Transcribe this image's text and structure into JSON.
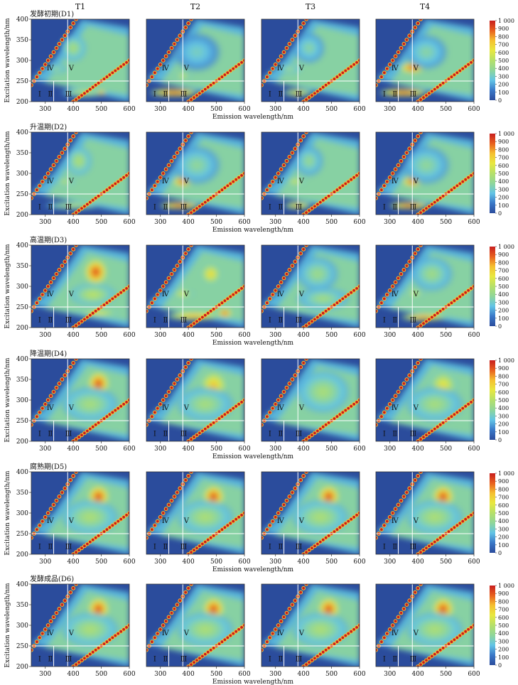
{
  "chart_data": {
    "type": "heatmap",
    "columns": [
      "T1",
      "T2",
      "T3",
      "T4"
    ],
    "rows": [
      {
        "label": "发酵初期(D1)",
        "row_id": "D1"
      },
      {
        "label": "升温期(D2)",
        "row_id": "D2"
      },
      {
        "label": "高温期(D3)",
        "row_id": "D3"
      },
      {
        "label": "降温期(D4)",
        "row_id": "D4"
      },
      {
        "label": "腐熟期(D5)",
        "row_id": "D5"
      },
      {
        "label": "发酵成品(D6)",
        "row_id": "D6"
      }
    ],
    "xlabel": "Emission wavelength/nm",
    "ylabel": "Excitation wavelength/nm",
    "xlim": [
      250,
      600
    ],
    "ylim": [
      200,
      400
    ],
    "xticks": [
      300,
      400,
      500,
      600
    ],
    "xtick_labels": [
      "300",
      "400",
      "500",
      "600"
    ],
    "yticks": [
      200,
      250,
      300,
      350,
      400
    ],
    "ytick_labels": [
      "200",
      "250",
      "300",
      "350",
      "400"
    ],
    "colorbar": {
      "range": [
        0,
        1000
      ],
      "ticks": [
        0,
        100,
        200,
        300,
        400,
        500,
        600,
        700,
        800,
        900,
        1000
      ],
      "tick_labels": [
        "0",
        "100",
        "200",
        "300",
        "400",
        "500",
        "600",
        "700",
        "800",
        "900",
        "1 000"
      ],
      "colors": [
        "#2b4c9c",
        "#3a78c8",
        "#62c4e6",
        "#8fd69a",
        "#b5e06a",
        "#e8e840",
        "#f5c030",
        "#e8601e",
        "#c81e1e"
      ]
    },
    "region_boundaries": {
      "emission_nm": [
        330,
        380
      ],
      "excitation_nm": [
        250
      ]
    },
    "regions": [
      {
        "label": "Ⅰ",
        "em": 280,
        "ex": 220
      },
      {
        "label": "Ⅱ",
        "em": 318,
        "ex": 220
      },
      {
        "label": "Ⅲ",
        "em": 383,
        "ex": 220
      },
      {
        "label": "Ⅳ",
        "em": 318,
        "ex": 283
      },
      {
        "label": "Ⅴ",
        "em": 393,
        "ex": 283
      }
    ],
    "panels": [
      {
        "row": 0,
        "col": 0,
        "blobs": [
          {
            "em": 400,
            "ex": 330,
            "sx": 50,
            "sy": 35,
            "v": 480
          },
          {
            "em": 340,
            "ex": 280,
            "sx": 40,
            "sy": 12,
            "v": 450
          },
          {
            "em": 440,
            "ex": 222,
            "sx": 90,
            "sy": 12,
            "v": 560
          },
          {
            "em": 500,
            "ex": 222,
            "sx": 18,
            "sy": 7,
            "v": 950
          }
        ]
      },
      {
        "row": 0,
        "col": 1,
        "blobs": [
          {
            "em": 380,
            "ex": 318,
            "sx": 40,
            "sy": 10,
            "v": 620
          },
          {
            "em": 380,
            "ex": 262,
            "sx": 35,
            "sy": 9,
            "v": 620
          },
          {
            "em": 350,
            "ex": 222,
            "sx": 95,
            "sy": 10,
            "v": 1000
          },
          {
            "em": 430,
            "ex": 320,
            "sx": 90,
            "sy": 50,
            "v": 330
          }
        ]
      },
      {
        "row": 0,
        "col": 2,
        "blobs": [
          {
            "em": 420,
            "ex": 330,
            "sx": 60,
            "sy": 40,
            "v": 380
          },
          {
            "em": 350,
            "ex": 280,
            "sx": 45,
            "sy": 12,
            "v": 480
          },
          {
            "em": 380,
            "ex": 222,
            "sx": 60,
            "sy": 9,
            "v": 720
          },
          {
            "em": 380,
            "ex": 218,
            "sx": 20,
            "sy": 6,
            "v": 900
          }
        ]
      },
      {
        "row": 0,
        "col": 3,
        "blobs": [
          {
            "em": 380,
            "ex": 282,
            "sx": 50,
            "sy": 14,
            "v": 1000
          },
          {
            "em": 350,
            "ex": 222,
            "sx": 95,
            "sy": 10,
            "v": 1000
          },
          {
            "em": 430,
            "ex": 320,
            "sx": 80,
            "sy": 45,
            "v": 380
          }
        ]
      },
      {
        "row": 1,
        "col": 0,
        "blobs": [
          {
            "em": 420,
            "ex": 330,
            "sx": 50,
            "sy": 38,
            "v": 500
          },
          {
            "em": 370,
            "ex": 280,
            "sx": 40,
            "sy": 12,
            "v": 560
          },
          {
            "em": 400,
            "ex": 222,
            "sx": 110,
            "sy": 10,
            "v": 560
          }
        ]
      },
      {
        "row": 1,
        "col": 1,
        "blobs": [
          {
            "em": 380,
            "ex": 280,
            "sx": 40,
            "sy": 13,
            "v": 1000
          },
          {
            "em": 370,
            "ex": 222,
            "sx": 80,
            "sy": 9,
            "v": 1000
          },
          {
            "em": 430,
            "ex": 320,
            "sx": 90,
            "sy": 50,
            "v": 400
          }
        ]
      },
      {
        "row": 1,
        "col": 2,
        "blobs": [
          {
            "em": 420,
            "ex": 330,
            "sx": 55,
            "sy": 40,
            "v": 420
          },
          {
            "em": 370,
            "ex": 280,
            "sx": 40,
            "sy": 12,
            "v": 620
          },
          {
            "em": 380,
            "ex": 222,
            "sx": 55,
            "sy": 9,
            "v": 800
          }
        ]
      },
      {
        "row": 1,
        "col": 3,
        "blobs": [
          {
            "em": 380,
            "ex": 280,
            "sx": 40,
            "sy": 13,
            "v": 1000
          },
          {
            "em": 370,
            "ex": 222,
            "sx": 80,
            "sy": 9,
            "v": 1000
          },
          {
            "em": 430,
            "ex": 320,
            "sx": 90,
            "sy": 50,
            "v": 400
          }
        ]
      },
      {
        "row": 2,
        "col": 0,
        "blobs": [
          {
            "em": 480,
            "ex": 335,
            "sx": 45,
            "sy": 35,
            "v": 1000
          },
          {
            "em": 470,
            "ex": 280,
            "sx": 90,
            "sy": 30,
            "v": 540
          },
          {
            "em": 490,
            "ex": 235,
            "sx": 80,
            "sy": 10,
            "v": 680
          }
        ]
      },
      {
        "row": 2,
        "col": 1,
        "blobs": [
          {
            "em": 480,
            "ex": 330,
            "sx": 40,
            "sy": 28,
            "v": 720
          },
          {
            "em": 380,
            "ex": 282,
            "sx": 45,
            "sy": 12,
            "v": 640
          },
          {
            "em": 420,
            "ex": 228,
            "sx": 110,
            "sy": 11,
            "v": 820
          },
          {
            "em": 530,
            "ex": 235,
            "sx": 28,
            "sy": 12,
            "v": 1000
          }
        ]
      },
      {
        "row": 2,
        "col": 2,
        "blobs": [
          {
            "em": 450,
            "ex": 330,
            "sx": 80,
            "sy": 45,
            "v": 440
          },
          {
            "em": 470,
            "ex": 270,
            "sx": 100,
            "sy": 30,
            "v": 460
          }
        ]
      },
      {
        "row": 2,
        "col": 3,
        "blobs": [
          {
            "em": 450,
            "ex": 330,
            "sx": 80,
            "sy": 45,
            "v": 450
          },
          {
            "em": 390,
            "ex": 283,
            "sx": 40,
            "sy": 10,
            "v": 620
          },
          {
            "em": 420,
            "ex": 225,
            "sx": 90,
            "sy": 9,
            "v": 900
          }
        ]
      },
      {
        "row": 3,
        "col": 0,
        "blobs": [
          {
            "em": 490,
            "ex": 340,
            "sx": 42,
            "sy": 32,
            "v": 1000
          },
          {
            "em": 460,
            "ex": 290,
            "sx": 110,
            "sy": 45,
            "v": 470
          }
        ]
      },
      {
        "row": 3,
        "col": 1,
        "blobs": [
          {
            "em": 490,
            "ex": 335,
            "sx": 55,
            "sy": 40,
            "v": 780
          },
          {
            "em": 460,
            "ex": 290,
            "sx": 110,
            "sy": 45,
            "v": 470
          }
        ]
      },
      {
        "row": 3,
        "col": 2,
        "blobs": [
          {
            "em": 470,
            "ex": 320,
            "sx": 100,
            "sy": 55,
            "v": 480
          }
        ]
      },
      {
        "row": 3,
        "col": 3,
        "blobs": [
          {
            "em": 490,
            "ex": 335,
            "sx": 55,
            "sy": 40,
            "v": 690
          },
          {
            "em": 460,
            "ex": 290,
            "sx": 110,
            "sy": 45,
            "v": 470
          }
        ]
      },
      {
        "row": 4,
        "col": 0,
        "blobs": [
          {
            "em": 490,
            "ex": 340,
            "sx": 42,
            "sy": 30,
            "v": 1000
          },
          {
            "em": 460,
            "ex": 290,
            "sx": 110,
            "sy": 45,
            "v": 490
          }
        ]
      },
      {
        "row": 4,
        "col": 1,
        "blobs": [
          {
            "em": 490,
            "ex": 340,
            "sx": 42,
            "sy": 30,
            "v": 1000
          },
          {
            "em": 460,
            "ex": 290,
            "sx": 110,
            "sy": 45,
            "v": 490
          }
        ]
      },
      {
        "row": 4,
        "col": 2,
        "blobs": [
          {
            "em": 490,
            "ex": 340,
            "sx": 42,
            "sy": 30,
            "v": 1000
          },
          {
            "em": 460,
            "ex": 290,
            "sx": 110,
            "sy": 45,
            "v": 490
          }
        ]
      },
      {
        "row": 4,
        "col": 3,
        "blobs": [
          {
            "em": 490,
            "ex": 340,
            "sx": 42,
            "sy": 30,
            "v": 1000
          },
          {
            "em": 460,
            "ex": 290,
            "sx": 110,
            "sy": 45,
            "v": 490
          }
        ]
      },
      {
        "row": 5,
        "col": 0,
        "blobs": [
          {
            "em": 490,
            "ex": 340,
            "sx": 42,
            "sy": 30,
            "v": 1000
          },
          {
            "em": 460,
            "ex": 290,
            "sx": 110,
            "sy": 45,
            "v": 490
          }
        ]
      },
      {
        "row": 5,
        "col": 1,
        "blobs": [
          {
            "em": 490,
            "ex": 340,
            "sx": 42,
            "sy": 30,
            "v": 1000
          },
          {
            "em": 460,
            "ex": 290,
            "sx": 110,
            "sy": 45,
            "v": 490
          }
        ]
      },
      {
        "row": 5,
        "col": 2,
        "blobs": [
          {
            "em": 490,
            "ex": 340,
            "sx": 42,
            "sy": 30,
            "v": 1000
          },
          {
            "em": 460,
            "ex": 290,
            "sx": 110,
            "sy": 45,
            "v": 490
          }
        ]
      },
      {
        "row": 5,
        "col": 3,
        "blobs": [
          {
            "em": 490,
            "ex": 340,
            "sx": 42,
            "sy": 30,
            "v": 1000
          },
          {
            "em": 460,
            "ex": 290,
            "sx": 110,
            "sy": 45,
            "v": 490
          }
        ]
      }
    ]
  }
}
